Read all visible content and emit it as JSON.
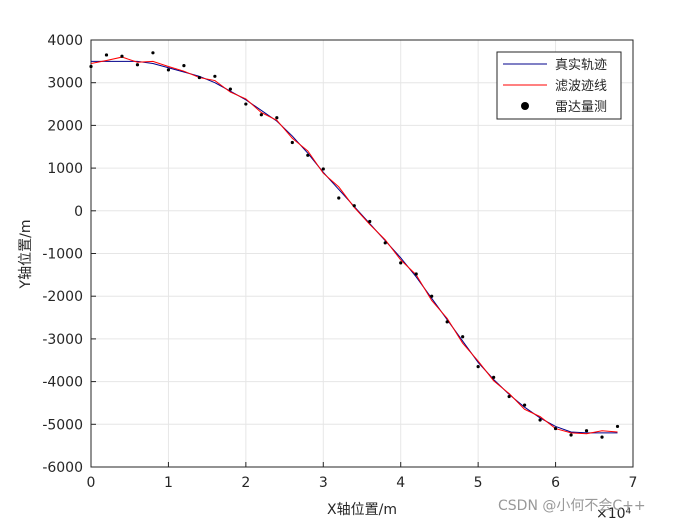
{
  "chart_data": {
    "type": "line",
    "xlabel": "X轴位置/m",
    "ylabel": "Y轴位置/m",
    "x_multiplier": "×10⁴",
    "xlim": [
      0,
      7
    ],
    "ylim": [
      -6000,
      4000
    ],
    "xticks": [
      0,
      1,
      2,
      3,
      4,
      5,
      6,
      7
    ],
    "yticks": [
      -6000,
      -5000,
      -4000,
      -3000,
      -2000,
      -1000,
      0,
      1000,
      2000,
      3000,
      4000
    ],
    "grid": true,
    "legend": "upper-right",
    "x": [
      0,
      0.2,
      0.4,
      0.6,
      0.8,
      1.0,
      1.2,
      1.4,
      1.6,
      1.8,
      2.0,
      2.2,
      2.4,
      2.6,
      2.8,
      3.0,
      3.2,
      3.4,
      3.6,
      3.8,
      4.0,
      4.2,
      4.4,
      4.6,
      4.8,
      5.0,
      5.2,
      5.4,
      5.6,
      5.8,
      6.0,
      6.2,
      6.4,
      6.6,
      6.8
    ],
    "series": [
      {
        "name": "真实轨迹",
        "color": "#00008b",
        "style": "line",
        "values": [
          3500,
          3500,
          3500,
          3500,
          3450,
          3350,
          3250,
          3150,
          3000,
          2800,
          2600,
          2350,
          2100,
          1750,
          1350,
          900,
          500,
          100,
          -300,
          -700,
          -1100,
          -1550,
          -2050,
          -2550,
          -3050,
          -3550,
          -3950,
          -4300,
          -4600,
          -4850,
          -5050,
          -5180,
          -5200,
          -5200,
          -5200
        ]
      },
      {
        "name": "滤波迹线",
        "color": "#ff0000",
        "style": "line",
        "values": [
          3450,
          3520,
          3600,
          3480,
          3500,
          3380,
          3270,
          3120,
          3050,
          2780,
          2620,
          2300,
          2120,
          1700,
          1400,
          880,
          560,
          80,
          -320,
          -680,
          -1150,
          -1500,
          -2100,
          -2520,
          -3100,
          -3520,
          -3980,
          -4280,
          -4650,
          -4820,
          -5100,
          -5200,
          -5220,
          -5150,
          -5180
        ]
      },
      {
        "name": "雷达量测",
        "color": "#000000",
        "style": "scatter",
        "values": [
          3380,
          3650,
          3620,
          3420,
          3700,
          3300,
          3400,
          3120,
          3150,
          2850,
          2500,
          2250,
          2180,
          1600,
          1300,
          980,
          300,
          120,
          -250,
          -750,
          -1220,
          -1480,
          -2000,
          -2600,
          -2950,
          -3650,
          -3900,
          -4350,
          -4550,
          -4900,
          -5100,
          -5250,
          -5150,
          -5300,
          -5050
        ]
      }
    ],
    "watermark": "CSDN @小何不会C++"
  }
}
